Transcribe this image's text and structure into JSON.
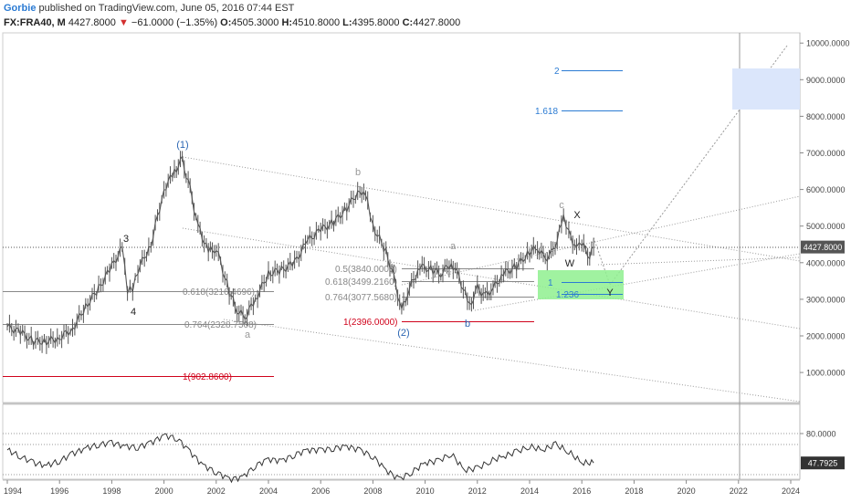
{
  "header": {
    "author": "Gorbie",
    "published": "published on TradingView.com, June 05, 2016 07:44 EST",
    "symbol": "FX:FRA40, M",
    "last": "4427.8000",
    "change_arrow": "▼",
    "change": "−61.0000 (−1.35%)",
    "o_label": "O:",
    "o": "4505.3000",
    "h_label": "H:",
    "h": "4510.8000",
    "l_label": "L:",
    "l": "4395.8000",
    "c_label": "C:",
    "c": "4427.8000"
  },
  "colors": {
    "price": "#555555",
    "fib_gray": "#888888",
    "fib_red": "#d0021b",
    "fib_blue": "#2b7bd3",
    "target_green": "#8ff08f",
    "target_blue_box": "#dbe6fb",
    "label_gray": "#999999",
    "label_blue": "#2b66b3"
  },
  "chart_data": [
    {
      "type": "line",
      "name": "FRA40 monthly price",
      "x_ticks": [
        "1994",
        "1996",
        "1998",
        "2000",
        "2002",
        "2004",
        "2006",
        "2008",
        "2010",
        "2012",
        "2014",
        "2016",
        "2018",
        "2020",
        "2022",
        "2024"
      ],
      "y_ticks": [
        "10000.0000",
        "9000.0000",
        "8000.0000",
        "7000.0000",
        "6000.0000",
        "5000.0000",
        "4000.0000",
        "3000.0000",
        "2000.0000",
        "1000.0000"
      ],
      "ylim": [
        0,
        10000
      ],
      "last_price_label": "4427.8000",
      "x": [
        1994.0,
        1994.5,
        1995.0,
        1995.5,
        1996.0,
        1996.5,
        1997.0,
        1997.5,
        1998.0,
        1998.4,
        1998.6,
        1998.8,
        1999.0,
        1999.5,
        2000.0,
        2000.4,
        2000.7,
        2001.0,
        2001.3,
        2001.7,
        2002.0,
        2002.5,
        2002.8,
        2003.1,
        2003.5,
        2004.0,
        2004.5,
        2005.0,
        2005.5,
        2006.0,
        2006.5,
        2007.0,
        2007.5,
        2007.8,
        2008.0,
        2008.5,
        2008.8,
        2009.1,
        2009.4,
        2009.8,
        2010.3,
        2010.6,
        2011.0,
        2011.3,
        2011.7,
        2012.0,
        2012.3,
        2012.6,
        2013.0,
        2013.5,
        2014.0,
        2014.3,
        2014.6,
        2014.9,
        2015.3,
        2015.5,
        2015.8,
        2016.0,
        2016.3,
        2016.45
      ],
      "values": [
        2250,
        2100,
        1850,
        1850,
        1950,
        2200,
        2800,
        3300,
        3900,
        4400,
        3200,
        3300,
        3800,
        4500,
        6000,
        6500,
        6800,
        6000,
        5000,
        4300,
        4400,
        3200,
        2700,
        2500,
        3000,
        3700,
        3800,
        4000,
        4600,
        4900,
        5100,
        5500,
        6000,
        5700,
        5000,
        4300,
        3600,
        2700,
        3300,
        3900,
        3800,
        3700,
        4000,
        3600,
        2800,
        3300,
        3100,
        3300,
        3700,
        3900,
        4300,
        4400,
        4100,
        4300,
        5200,
        4800,
        4400,
        4500,
        4200,
        4428
      ],
      "labels": {
        "w1": "(1)",
        "w2": "(2)",
        "w3": "3",
        "w4": "4",
        "wa1": "a",
        "wb": "b",
        "wa2": "a",
        "wb2": "b",
        "wc": "c",
        "wx": "X",
        "ww": "W",
        "wy": "Y"
      },
      "fib_levels": [
        {
          "label": "0.618(3216.4696)",
          "value": 3216.47
        },
        {
          "label": "0.764(2328.7508)",
          "value": 2328.75
        },
        {
          "label": "1(902.8600)",
          "value": 902.86
        },
        {
          "label": "0.5(3840.0000)",
          "value": 3840.0
        },
        {
          "label": "0.618(3499.2160)",
          "value": 3499.22
        },
        {
          "label": "0.764(3077.5680)",
          "value": 3077.57
        },
        {
          "label": "1(2396.0000)",
          "value": 2396.0
        },
        {
          "label": "2",
          "value": 9260
        },
        {
          "label": "1.618",
          "value": 8150
        },
        {
          "label": "1",
          "value": 3470
        },
        {
          "label": "1.236",
          "value": 3140
        }
      ]
    },
    {
      "type": "line",
      "name": "RSI",
      "y_ticks": [
        "80.0000"
      ],
      "last_value_label": "47.7925",
      "x": [
        1994.0,
        1994.5,
        1995.0,
        1995.5,
        1996.0,
        1996.5,
        1997.0,
        1997.5,
        1998.0,
        1998.5,
        1999.0,
        1999.5,
        2000.0,
        2000.5,
        2001.0,
        2001.5,
        2002.0,
        2002.5,
        2003.0,
        2003.5,
        2004.0,
        2004.5,
        2005.0,
        2005.5,
        2006.0,
        2006.5,
        2007.0,
        2007.5,
        2008.0,
        2008.5,
        2009.0,
        2009.5,
        2010.0,
        2010.5,
        2011.0,
        2011.5,
        2012.0,
        2012.5,
        2013.0,
        2013.5,
        2014.0,
        2014.5,
        2015.0,
        2015.5,
        2016.0,
        2016.45
      ],
      "values": [
        62,
        55,
        48,
        45,
        50,
        58,
        64,
        68,
        70,
        66,
        65,
        70,
        78,
        75,
        60,
        45,
        38,
        30,
        32,
        45,
        52,
        50,
        57,
        62,
        62,
        64,
        66,
        62,
        55,
        40,
        30,
        38,
        48,
        50,
        58,
        40,
        42,
        50,
        55,
        60,
        66,
        62,
        68,
        60,
        48,
        47.8
      ]
    }
  ]
}
